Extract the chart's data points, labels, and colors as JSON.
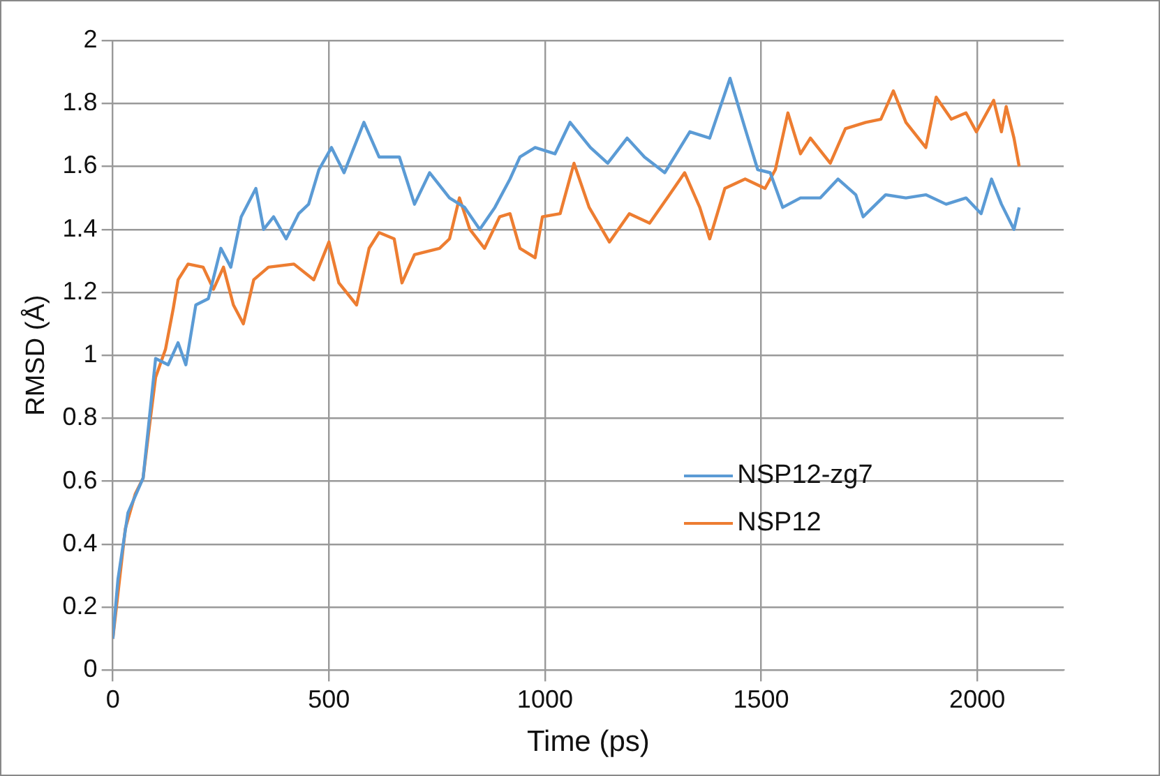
{
  "chart_data": {
    "type": "line",
    "xlabel": "Time (ps)",
    "ylabel": "RMSD (Å)",
    "xlim": [
      0,
      2200
    ],
    "xticks": [
      0,
      500,
      1000,
      1500,
      2000
    ],
    "ylim": [
      0,
      2
    ],
    "yticks": [
      0,
      0.2,
      0.4,
      0.6,
      0.8,
      1,
      1.2,
      1.4,
      1.6,
      1.8,
      2
    ],
    "grid": true,
    "legend": "right",
    "marker": "none",
    "line_style": "solid",
    "series": [
      {
        "name": "NSP12-zg7",
        "color": "#5b9bd5",
        "x": [
          0,
          12,
          35,
          70,
          99,
          128,
          151,
          169,
          192,
          221,
          250,
          273,
          297,
          331,
          349,
          372,
          401,
          430,
          453,
          477,
          506,
          535,
          558,
          581,
          616,
          663,
          698,
          733,
          779,
          814,
          849,
          884,
          919,
          942,
          977,
          1023,
          1058,
          1105,
          1145,
          1190,
          1230,
          1277,
          1335,
          1381,
          1428,
          1463,
          1492,
          1521,
          1550,
          1591,
          1637,
          1678,
          1719,
          1736,
          1788,
          1835,
          1881,
          1928,
          1974,
          2009,
          2033,
          2056,
          2085,
          2097
        ],
        "values": [
          0.1,
          0.29,
          0.5,
          0.61,
          0.99,
          0.97,
          1.04,
          0.97,
          1.16,
          1.18,
          1.34,
          1.28,
          1.44,
          1.53,
          1.4,
          1.44,
          1.37,
          1.45,
          1.48,
          1.59,
          1.66,
          1.58,
          1.66,
          1.74,
          1.63,
          1.63,
          1.48,
          1.58,
          1.5,
          1.47,
          1.4,
          1.47,
          1.56,
          1.63,
          1.66,
          1.64,
          1.74,
          1.66,
          1.61,
          1.69,
          1.63,
          1.58,
          1.71,
          1.69,
          1.88,
          1.72,
          1.59,
          1.58,
          1.47,
          1.5,
          1.5,
          1.56,
          1.51,
          1.44,
          1.51,
          1.5,
          1.51,
          1.48,
          1.5,
          1.45,
          1.56,
          1.48,
          1.4,
          1.47
        ]
      },
      {
        "name": "NSP12",
        "color": "#ed7d31",
        "x": [
          0,
          29,
          52,
          70,
          87,
          99,
          122,
          140,
          151,
          174,
          209,
          233,
          256,
          279,
          302,
          326,
          360,
          419,
          465,
          500,
          523,
          564,
          593,
          616,
          651,
          669,
          698,
          756,
          779,
          802,
          826,
          860,
          895,
          919,
          942,
          977,
          994,
          1035,
          1067,
          1102,
          1149,
          1195,
          1242,
          1288,
          1323,
          1358,
          1381,
          1416,
          1463,
          1509,
          1533,
          1562,
          1591,
          1614,
          1660,
          1695,
          1742,
          1777,
          1806,
          1835,
          1881,
          1905,
          1940,
          1974,
          1998,
          2038,
          2056,
          2067,
          2085,
          2097
        ],
        "values": [
          0.1,
          0.45,
          0.56,
          0.61,
          0.8,
          0.93,
          1.02,
          1.15,
          1.24,
          1.29,
          1.28,
          1.21,
          1.28,
          1.16,
          1.1,
          1.24,
          1.28,
          1.29,
          1.24,
          1.36,
          1.23,
          1.16,
          1.34,
          1.39,
          1.37,
          1.23,
          1.32,
          1.34,
          1.37,
          1.5,
          1.4,
          1.34,
          1.44,
          1.45,
          1.34,
          1.31,
          1.44,
          1.45,
          1.61,
          1.47,
          1.36,
          1.45,
          1.42,
          1.51,
          1.58,
          1.47,
          1.37,
          1.53,
          1.56,
          1.53,
          1.59,
          1.77,
          1.64,
          1.69,
          1.61,
          1.72,
          1.74,
          1.75,
          1.84,
          1.74,
          1.66,
          1.82,
          1.75,
          1.77,
          1.71,
          1.81,
          1.71,
          1.79,
          1.69,
          1.6
        ]
      }
    ]
  }
}
